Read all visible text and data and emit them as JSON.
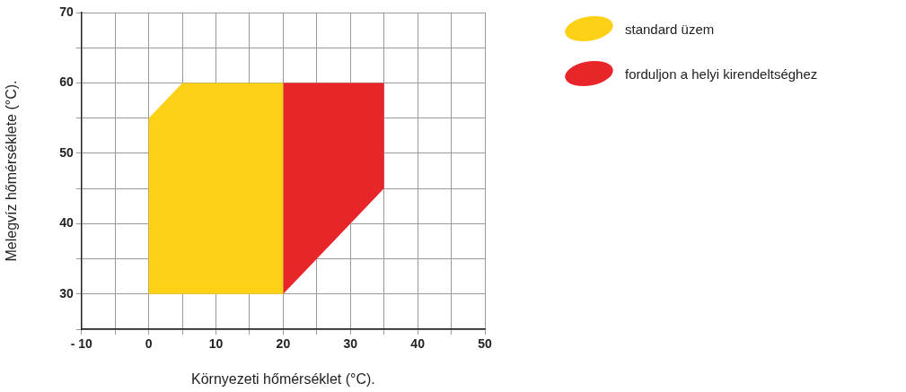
{
  "chart_data": {
    "type": "area",
    "xlabel": "Környezeti hőmérséklet (°C).",
    "ylabel": "Melegvíz hőmérséklete (°C).",
    "xlim": [
      -10,
      50
    ],
    "xticks": [
      {
        "value": -10,
        "label": "- 10"
      },
      {
        "value": -5,
        "label": null
      },
      0,
      {
        "value": 5,
        "label": null
      },
      10,
      {
        "value": 15,
        "label": null
      },
      20,
      {
        "value": 25,
        "label": null
      },
      30,
      {
        "value": 35,
        "label": null
      },
      40,
      {
        "value": 45,
        "label": null
      },
      50
    ],
    "ylim": [
      25,
      70
    ],
    "yticks": [
      {
        "value": 25,
        "label": null
      },
      30,
      {
        "value": 35,
        "label": null
      },
      40,
      {
        "value": 45,
        "label": null
      },
      50,
      {
        "value": 55,
        "label": null
      },
      60,
      {
        "value": 65,
        "label": null
      },
      70
    ],
    "grid": true,
    "legend": "top right",
    "series": [
      {
        "name": "standard üzem",
        "color": "#fcd116",
        "x": [
          0,
          0,
          5,
          20,
          20
        ],
        "values": [
          30,
          55,
          60,
          60,
          30
        ]
      },
      {
        "name": "forduljon a helyi kirendeltséghez",
        "color": "#e8262a",
        "x": [
          20,
          20,
          35,
          35
        ],
        "values": [
          30,
          60,
          60,
          45
        ]
      }
    ]
  }
}
